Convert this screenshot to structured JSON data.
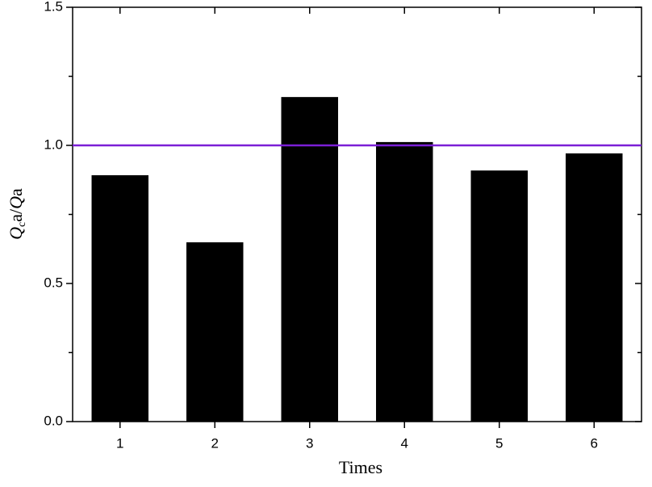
{
  "chart_data": {
    "type": "bar",
    "x_label": "Times",
    "y_label": [
      "Q",
      "c",
      "a/",
      "Q",
      "a"
    ],
    "categories": [
      "1",
      "2",
      "3",
      "4",
      "5",
      "6"
    ],
    "values": [
      0.892,
      0.649,
      1.175,
      1.012,
      0.909,
      0.971
    ],
    "color": "#000000",
    "ylim": [
      0,
      1.5
    ],
    "yticks": [
      {
        "value": 0,
        "label": "0.0"
      },
      {
        "value": 0.5,
        "label": "0.5"
      },
      {
        "value": 1,
        "label": "1.0"
      },
      {
        "value": 1.5,
        "label": "1.5"
      }
    ],
    "yminorticks": [
      0.25,
      0.75,
      1.25
    ],
    "reference_line": {
      "value": 1,
      "color": "#7b1fd6"
    },
    "grid": false
  }
}
